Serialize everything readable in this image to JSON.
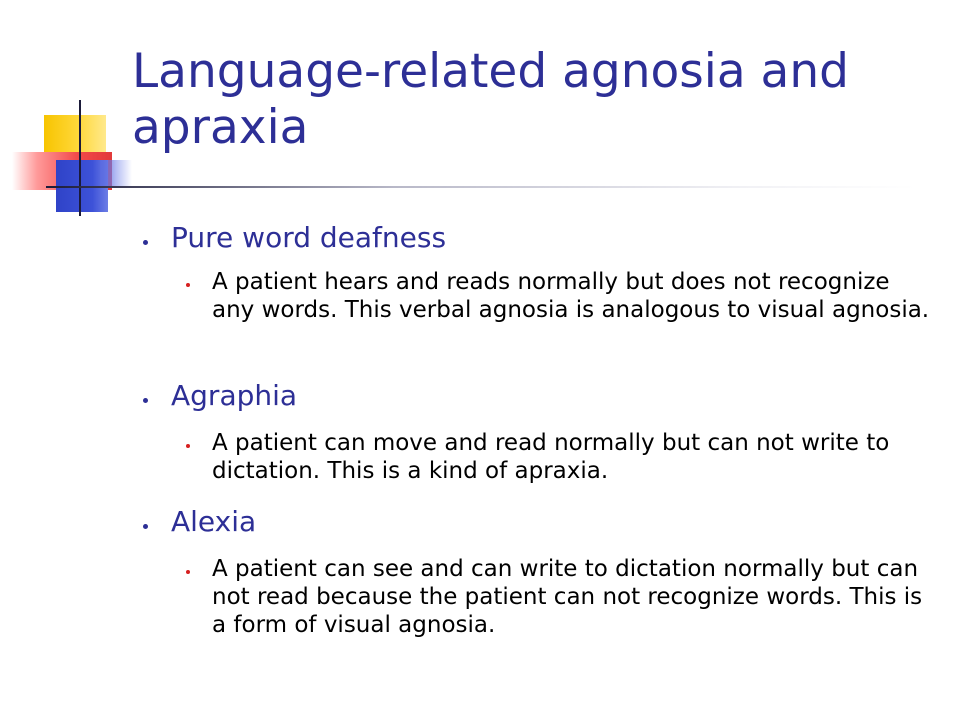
{
  "slide": {
    "title": "Language-related agnosia and apraxia",
    "sections": [
      {
        "heading": "Pure word deafness",
        "detail": "A patient hears and reads normally but does not recognize any words.  This verbal agnosia is analogous to visual agnosia."
      },
      {
        "heading": "Agraphia",
        "detail": "A patient can move and read normally but can not write to dictation.  This is a kind of apraxia."
      },
      {
        "heading": "Alexia",
        "detail": "A patient can see and can write to dictation normally but can not read because the patient can not recognize words.  This is a form of visual agnosia."
      }
    ]
  },
  "colors": {
    "title": "#2d2f96",
    "level1_text": "#2d2f96",
    "level2_text": "#000000",
    "level1_bullet": "#2d2f96",
    "level2_bullet": "#d62020",
    "ornament_yellow": "#f7c400",
    "ornament_red": "#e23a3a",
    "ornament_blue": "#2f43c8"
  }
}
